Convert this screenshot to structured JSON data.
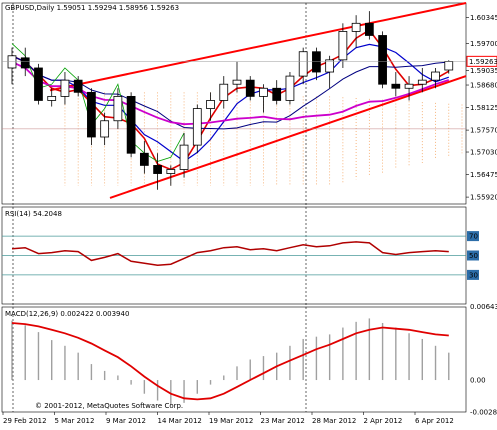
{
  "header": {
    "symbol": "GBPUSD,Daily",
    "ohlc": "1.59051 1.59294 1.58956 1.59263"
  },
  "price_panel": {
    "current_price": "1.59263",
    "tick_labels": [
      "1.60345",
      "1.59700",
      "1.59035",
      "1.58680",
      "1.58125",
      "1.57570",
      "1.57030",
      "1.56475",
      "1.55920"
    ]
  },
  "rsi_panel": {
    "label": "RSI(14) 54.2048",
    "levels": [
      "70",
      "50",
      "30"
    ]
  },
  "macd_panel": {
    "label": "MACD(12,26,9) 0.002422 0.003940",
    "tick_labels": [
      "0.006436",
      "0.00",
      "-0.002812"
    ]
  },
  "x_axis": {
    "labels": [
      "29 Feb 2012",
      "5 Mar 2012",
      "9 Mar 2012",
      "14 Mar 2012",
      "19 Mar 2012",
      "23 Mar 2012",
      "28 Mar 2012",
      "2 Apr 2012",
      "6 Apr 2012"
    ]
  },
  "copyright": "© 2001-2012, MetaQuotes Software Corp.",
  "colors": {
    "bull": "#ffffff",
    "bear": "#000000",
    "channel": "#ff0000",
    "ma_red": "#e00000",
    "ma_blue": "#0000cc",
    "ma_navy": "#000080",
    "ma_magenta": "#cc00cc",
    "ma_green": "#00a000",
    "cloud": "#f4a460",
    "rsi_line": "#b00000",
    "macd_signal": "#e00000",
    "macd_hist": "#a0a0a0",
    "price_label_border": "#ff0000"
  },
  "chart_data": {
    "type": "candlestick",
    "symbol": "GBPUSD",
    "timeframe": "Daily",
    "ylim": [
      1.5575,
      1.607
    ],
    "candles": [
      {
        "o": 1.591,
        "h": 1.596,
        "l": 1.587,
        "c": 1.594
      },
      {
        "o": 1.5935,
        "h": 1.596,
        "l": 1.589,
        "c": 1.591
      },
      {
        "o": 1.591,
        "h": 1.592,
        "l": 1.582,
        "c": 1.583
      },
      {
        "o": 1.583,
        "h": 1.586,
        "l": 1.5815,
        "c": 1.584
      },
      {
        "o": 1.584,
        "h": 1.59,
        "l": 1.582,
        "c": 1.588
      },
      {
        "o": 1.588,
        "h": 1.589,
        "l": 1.584,
        "c": 1.585
      },
      {
        "o": 1.585,
        "h": 1.586,
        "l": 1.572,
        "c": 1.574
      },
      {
        "o": 1.574,
        "h": 1.58,
        "l": 1.572,
        "c": 1.578
      },
      {
        "o": 1.578,
        "h": 1.586,
        "l": 1.576,
        "c": 1.584
      },
      {
        "o": 1.584,
        "h": 1.585,
        "l": 1.569,
        "c": 1.57
      },
      {
        "o": 1.57,
        "h": 1.573,
        "l": 1.565,
        "c": 1.567
      },
      {
        "o": 1.567,
        "h": 1.57,
        "l": 1.561,
        "c": 1.565
      },
      {
        "o": 1.565,
        "h": 1.567,
        "l": 1.562,
        "c": 1.566
      },
      {
        "o": 1.566,
        "h": 1.575,
        "l": 1.564,
        "c": 1.572
      },
      {
        "o": 1.572,
        "h": 1.582,
        "l": 1.57,
        "c": 1.581
      },
      {
        "o": 1.581,
        "h": 1.585,
        "l": 1.578,
        "c": 1.583
      },
      {
        "o": 1.583,
        "h": 1.589,
        "l": 1.581,
        "c": 1.587
      },
      {
        "o": 1.587,
        "h": 1.5925,
        "l": 1.585,
        "c": 1.588
      },
      {
        "o": 1.588,
        "h": 1.589,
        "l": 1.583,
        "c": 1.584
      },
      {
        "o": 1.584,
        "h": 1.587,
        "l": 1.58,
        "c": 1.586
      },
      {
        "o": 1.586,
        "h": 1.588,
        "l": 1.582,
        "c": 1.583
      },
      {
        "o": 1.583,
        "h": 1.59,
        "l": 1.582,
        "c": 1.589
      },
      {
        "o": 1.589,
        "h": 1.596,
        "l": 1.587,
        "c": 1.595
      },
      {
        "o": 1.595,
        "h": 1.596,
        "l": 1.588,
        "c": 1.59
      },
      {
        "o": 1.59,
        "h": 1.594,
        "l": 1.586,
        "c": 1.593
      },
      {
        "o": 1.593,
        "h": 1.602,
        "l": 1.591,
        "c": 1.6
      },
      {
        "o": 1.6,
        "h": 1.604,
        "l": 1.596,
        "c": 1.602
      },
      {
        "o": 1.602,
        "h": 1.605,
        "l": 1.598,
        "c": 1.599
      },
      {
        "o": 1.599,
        "h": 1.6,
        "l": 1.586,
        "c": 1.587
      },
      {
        "o": 1.587,
        "h": 1.59,
        "l": 1.584,
        "c": 1.586
      },
      {
        "o": 1.586,
        "h": 1.589,
        "l": 1.583,
        "c": 1.587
      },
      {
        "o": 1.587,
        "h": 1.591,
        "l": 1.585,
        "c": 1.588
      },
      {
        "o": 1.588,
        "h": 1.591,
        "l": 1.586,
        "c": 1.59
      },
      {
        "o": 1.5905,
        "h": 1.5929,
        "l": 1.5896,
        "c": 1.5926
      }
    ],
    "rsi": [
      57,
      58,
      52,
      53,
      55,
      54,
      45,
      48,
      52,
      44,
      42,
      40,
      41,
      47,
      53,
      55,
      58,
      59,
      56,
      57,
      55,
      58,
      61,
      59,
      60,
      63,
      64,
      63,
      53,
      51,
      53,
      54,
      55,
      54
    ],
    "macd": [
      0.0052,
      0.0048,
      0.0042,
      0.0035,
      0.003,
      0.0024,
      0.0014,
      0.0008,
      0.0004,
      -0.0004,
      -0.0012,
      -0.0018,
      -0.0022,
      -0.002,
      -0.0012,
      -0.0004,
      0.0004,
      0.0012,
      0.0018,
      0.0021,
      0.0024,
      0.003,
      0.0036,
      0.0038,
      0.004,
      0.0046,
      0.0051,
      0.0054,
      0.005,
      0.0046,
      0.0041,
      0.0036,
      0.003,
      0.0024
    ],
    "macd_signal": [
      0.005,
      0.0049,
      0.0047,
      0.0044,
      0.0041,
      0.0037,
      0.0032,
      0.0026,
      0.002,
      0.0012,
      0.0003,
      -0.0005,
      -0.0012,
      -0.0016,
      -0.0017,
      -0.0016,
      -0.0012,
      -0.0006,
      0.0,
      0.0006,
      0.0012,
      0.0017,
      0.0022,
      0.0027,
      0.0031,
      0.0036,
      0.0041,
      0.0044,
      0.0046,
      0.0045,
      0.0044,
      0.0042,
      0.004,
      0.0039
    ]
  }
}
